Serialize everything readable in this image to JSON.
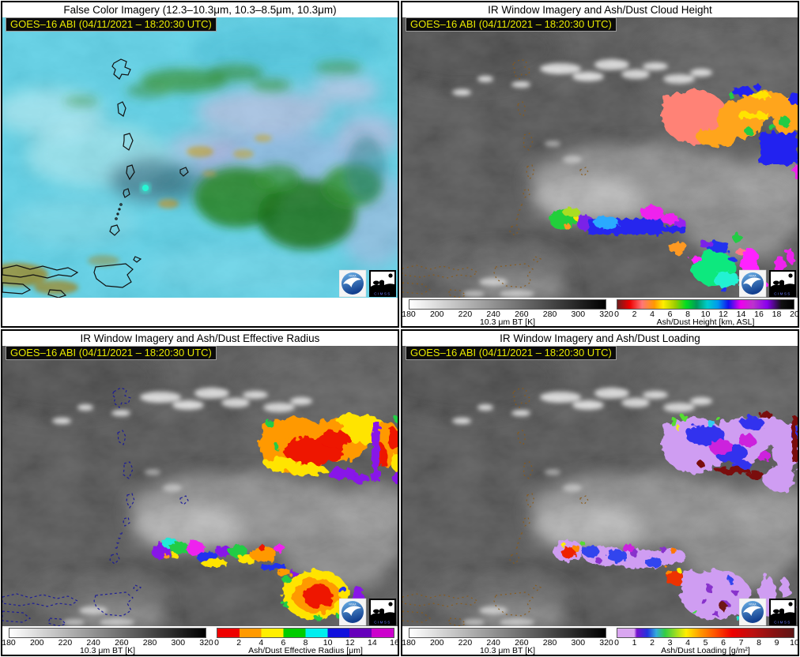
{
  "panels": {
    "false_color": {
      "title": "False Color Imagery (12.3–10.3μm, 10.3–8.5μm, 10.3μm)",
      "timestamp": "GOES–16 ABI (04/11/2021 – 18:20:30 UTC)",
      "colorbars": []
    },
    "height": {
      "title": "IR Window Imagery and Ash/Dust Cloud Height",
      "timestamp": "GOES–16 ABI (04/11/2021 – 18:20:30 UTC)",
      "colorbars": [
        "bt",
        "height"
      ]
    },
    "radius": {
      "title": "IR Window Imagery and Ash/Dust Effective Radius",
      "timestamp": "GOES–16 ABI (04/11/2021 – 18:20:30 UTC)",
      "colorbars": [
        "bt",
        "radius"
      ]
    },
    "loading": {
      "title": "IR Window Imagery and Ash/Dust Loading",
      "timestamp": "GOES–16 ABI (04/11/2021 – 18:20:30 UTC)",
      "colorbars": [
        "bt",
        "loading"
      ]
    }
  },
  "colorbars": {
    "bt": {
      "label": "10.3 μm BT [K]",
      "ticks": [
        "180",
        "200",
        "220",
        "240",
        "260",
        "280",
        "300",
        "320"
      ],
      "gradient": [
        [
          0,
          "#ffffff"
        ],
        [
          1,
          "#000000"
        ]
      ]
    },
    "height": {
      "label": "Ash/Dust Height [km, ASL]",
      "ticks": [
        "0",
        "2",
        "4",
        "6",
        "8",
        "10",
        "12",
        "14",
        "16",
        "18",
        "20"
      ],
      "gradient": [
        [
          0,
          "#701d1d"
        ],
        [
          0.07,
          "#ee0000"
        ],
        [
          0.14,
          "#ff7777"
        ],
        [
          0.21,
          "#ff9900"
        ],
        [
          0.26,
          "#ffee00"
        ],
        [
          0.33,
          "#99cc00"
        ],
        [
          0.39,
          "#00dd22"
        ],
        [
          0.45,
          "#00995b"
        ],
        [
          0.51,
          "#00cccc"
        ],
        [
          0.57,
          "#0099ee"
        ],
        [
          0.63,
          "#1111ee"
        ],
        [
          0.7,
          "#ee00ee"
        ],
        [
          0.77,
          "#bb33cc"
        ],
        [
          0.85,
          "#8800ee"
        ],
        [
          0.93,
          "#111111"
        ],
        [
          1,
          "#000000"
        ]
      ]
    },
    "radius": {
      "label": "Ash/Dust Effective Radius [μm]",
      "ticks": [
        "0",
        "2",
        "4",
        "6",
        "8",
        "10",
        "12",
        "14",
        "16"
      ],
      "segments": [
        "#ee0000",
        "#ff9900",
        "#ffee00",
        "#00cc00",
        "#00eeee",
        "#1111dd",
        "#6600bb",
        "#cc00cc"
      ]
    },
    "loading": {
      "label": "Ash/Dust Loading [g/m²]",
      "ticks": [
        "0",
        "1",
        "2",
        "3",
        "4",
        "5",
        "6",
        "7",
        "8",
        "9",
        "10"
      ],
      "gradient": [
        [
          0,
          "#d9a6f0"
        ],
        [
          0.095,
          "#d9a6f0"
        ],
        [
          0.11,
          "#7711cc"
        ],
        [
          0.17,
          "#2233dd"
        ],
        [
          0.22,
          "#33aadd"
        ],
        [
          0.27,
          "#33cc44"
        ],
        [
          0.33,
          "#99dd22"
        ],
        [
          0.39,
          "#ffee00"
        ],
        [
          0.47,
          "#ff9900"
        ],
        [
          0.55,
          "#ff5500"
        ],
        [
          0.65,
          "#ee0000"
        ],
        [
          0.77,
          "#bb1111"
        ],
        [
          0.88,
          "#8a1212"
        ],
        [
          1,
          "#5e1616"
        ]
      ]
    }
  },
  "logos": {
    "noaa_label": "NOAA",
    "cimss_label": "CIMSS"
  },
  "colors": {
    "timestamp_fg": "#e8e800",
    "timestamp_bg": "#0b0b0b",
    "false_color_sea": "#5ad2e8",
    "ir_background": "#464646"
  }
}
